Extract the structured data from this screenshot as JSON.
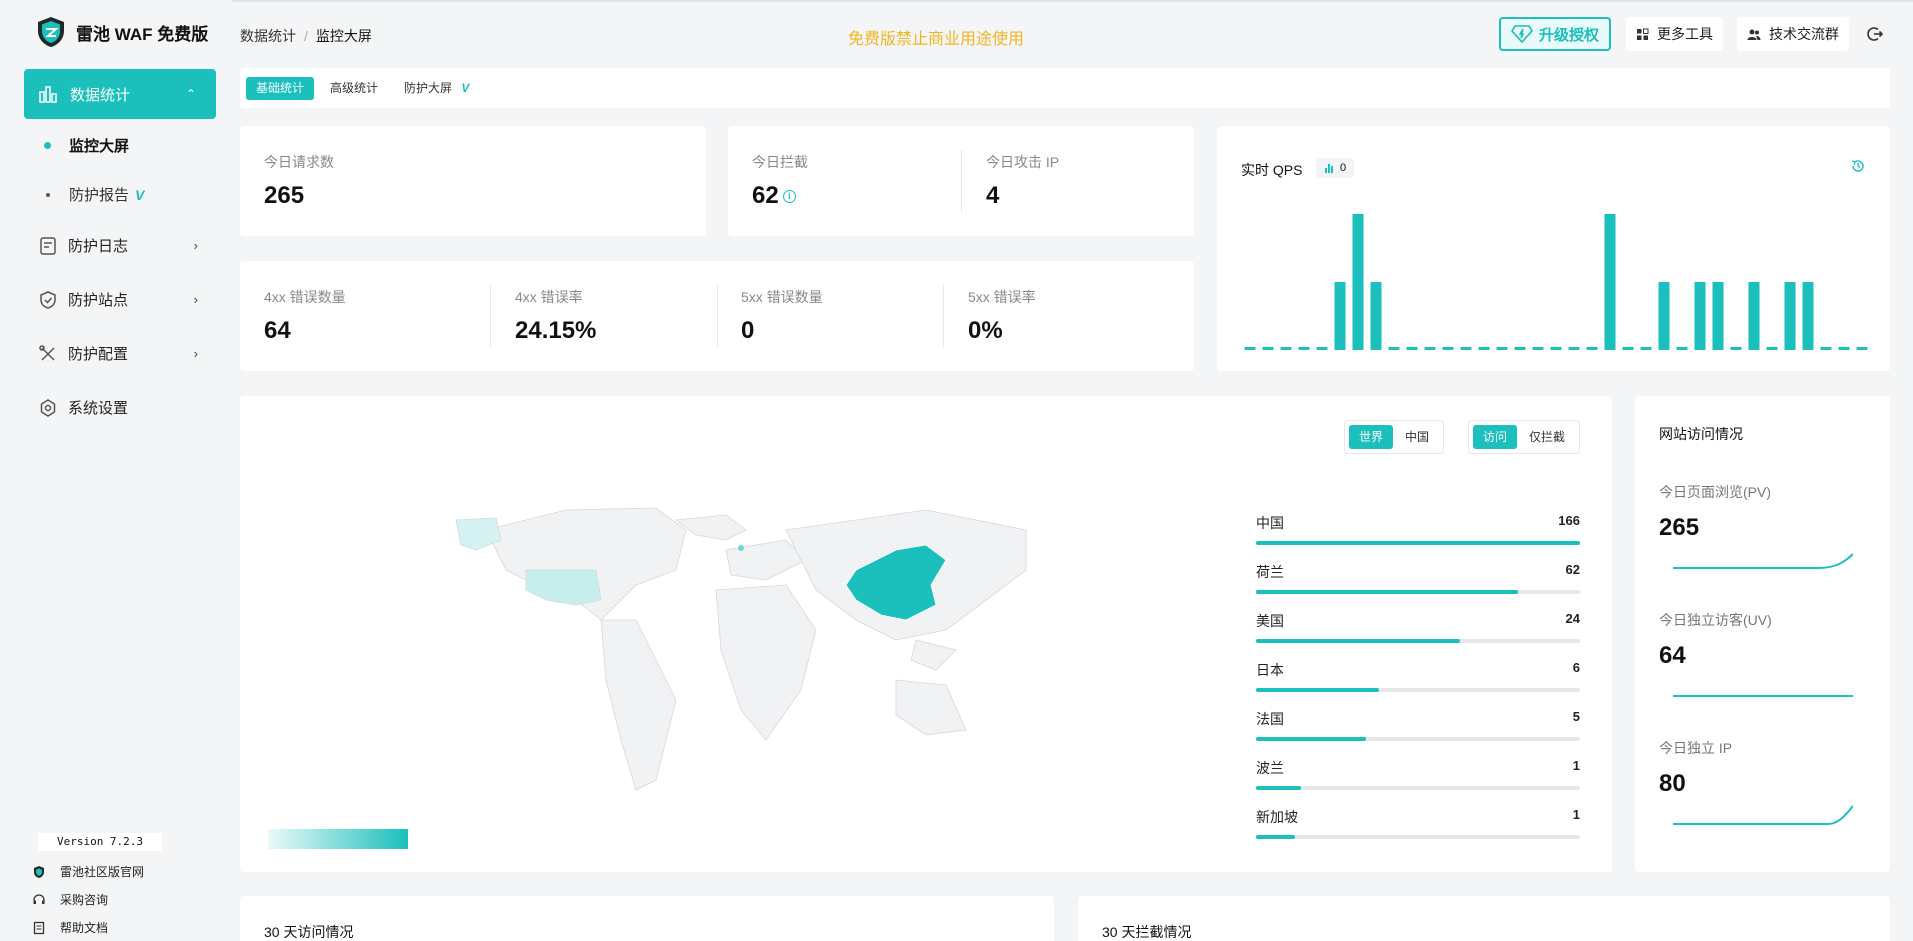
{
  "app": {
    "name": "雷池 WAF 免费版"
  },
  "sidebar": {
    "active": {
      "label": "数据统计"
    },
    "sub": [
      {
        "label": "监控大屏"
      },
      {
        "label": "防护报告",
        "badge": "V"
      }
    ],
    "items": [
      {
        "label": "防护日志",
        "icon": "log-icon"
      },
      {
        "label": "防护站点",
        "icon": "shield-icon"
      },
      {
        "label": "防护配置",
        "icon": "tools-icon"
      },
      {
        "label": "系统设置",
        "icon": "gear-icon"
      }
    ],
    "version": "Version 7.2.3",
    "footer": [
      {
        "label": "雷池社区版官网"
      },
      {
        "label": "采购咨询"
      },
      {
        "label": "帮助文档"
      }
    ]
  },
  "header": {
    "breadcrumb": [
      "数据统计",
      "/",
      "监控大屏"
    ],
    "notice": "免费版禁止商业用途使用",
    "upgrade": "升级授权",
    "more_tools": "更多工具",
    "community": "技术交流群"
  },
  "tabs": [
    {
      "label": "基础统计"
    },
    {
      "label": "高级统计"
    },
    {
      "label": "防护大屏",
      "badge": "V"
    }
  ],
  "stats": {
    "requests": {
      "label": "今日请求数",
      "value": "265"
    },
    "blocked": {
      "label": "今日拦截",
      "value": "62"
    },
    "attack_ip": {
      "label": "今日攻击 IP",
      "value": "4"
    },
    "err4": {
      "label": "4xx 错误数量",
      "value": "64"
    },
    "err4rate": {
      "label": "4xx 错误率",
      "value": "24.15%"
    },
    "err5": {
      "label": "5xx 错误数量",
      "value": "0"
    },
    "err5rate": {
      "label": "5xx 错误率",
      "value": "0%"
    }
  },
  "qps": {
    "title": "实时 QPS",
    "current": "0",
    "bars": [
      0,
      0,
      0,
      0,
      0,
      2,
      4,
      2,
      0,
      0,
      0,
      0,
      0,
      0,
      0,
      0,
      0,
      0,
      0,
      0,
      4,
      0,
      0,
      2,
      0,
      2,
      2,
      0,
      2,
      0,
      2,
      2,
      0,
      0,
      0
    ]
  },
  "map": {
    "region_toggle": [
      "世界",
      "中国"
    ],
    "mode_toggle": [
      "访问",
      "仅拦截"
    ],
    "countries": [
      {
        "name": "中国",
        "value": 166
      },
      {
        "name": "荷兰",
        "value": 62
      },
      {
        "name": "美国",
        "value": 24
      },
      {
        "name": "日本",
        "value": 6
      },
      {
        "name": "法国",
        "value": 5
      },
      {
        "name": "波兰",
        "value": 1
      },
      {
        "name": "新加坡",
        "value": 1
      }
    ],
    "bar_fraction": [
      1.0,
      0.81,
      0.63,
      0.38,
      0.34,
      0.14,
      0.12
    ]
  },
  "site": {
    "title": "网站访问情况",
    "pv": {
      "label": "今日页面浏览(PV)",
      "value": "265"
    },
    "uv": {
      "label": "今日独立访客(UV)",
      "value": "64"
    },
    "ip": {
      "label": "今日独立 IP",
      "value": "80"
    }
  },
  "bottom": {
    "left_title": "30 天访问情况",
    "right_title": "30 天拦截情况"
  },
  "colors": {
    "accent": "#1bbfbc",
    "notice": "#f2b51f"
  }
}
